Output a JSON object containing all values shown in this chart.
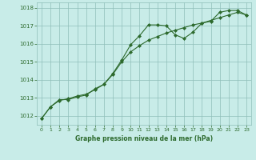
{
  "line1_x": [
    0,
    1,
    2,
    3,
    4,
    5,
    6,
    7,
    8,
    9,
    10,
    11,
    12,
    13,
    14,
    15,
    16,
    17,
    18,
    19,
    20,
    21,
    22,
    23
  ],
  "line1_y": [
    1011.85,
    1012.5,
    1012.9,
    1012.9,
    1013.05,
    1013.15,
    1013.5,
    1013.75,
    1014.35,
    1015.1,
    1015.95,
    1016.45,
    1017.05,
    1017.05,
    1017.0,
    1016.5,
    1016.3,
    1016.65,
    1017.15,
    1017.25,
    1017.75,
    1017.85,
    1017.85,
    1017.6
  ],
  "line2_x": [
    0,
    1,
    2,
    3,
    4,
    5,
    6,
    7,
    8,
    9,
    10,
    11,
    12,
    13,
    14,
    15,
    16,
    17,
    18,
    19,
    20,
    21,
    22,
    23
  ],
  "line2_y": [
    1011.85,
    1012.5,
    1012.85,
    1012.95,
    1013.1,
    1013.2,
    1013.45,
    1013.75,
    1014.3,
    1015.0,
    1015.55,
    1015.9,
    1016.2,
    1016.4,
    1016.6,
    1016.75,
    1016.9,
    1017.05,
    1017.15,
    1017.3,
    1017.45,
    1017.6,
    1017.75,
    1017.6
  ],
  "line_color": "#2d6a2d",
  "marker": "D",
  "marker_size": 2.0,
  "bg_color": "#c8ece8",
  "grid_color": "#8fbfba",
  "xlabel": "Graphe pression niveau de la mer (hPa)",
  "xlabel_color": "#2d6a2d",
  "tick_color": "#2d6a2d",
  "ylim": [
    1011.5,
    1018.3
  ],
  "xlim": [
    -0.5,
    23.5
  ],
  "yticks": [
    1012,
    1013,
    1014,
    1015,
    1016,
    1017,
    1018
  ],
  "xticks": [
    0,
    1,
    2,
    3,
    4,
    5,
    6,
    7,
    8,
    9,
    10,
    11,
    12,
    13,
    14,
    15,
    16,
    17,
    18,
    19,
    20,
    21,
    22,
    23
  ]
}
